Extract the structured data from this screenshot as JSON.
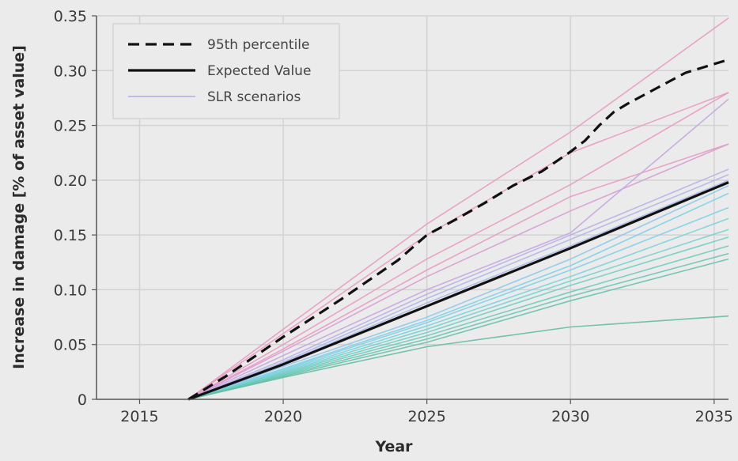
{
  "chart_data": {
    "type": "line",
    "title": "",
    "xlabel": "Year",
    "ylabel": "Increase in damage [% of asset value]",
    "xlim": [
      2013.5,
      2035.5
    ],
    "ylim": [
      0,
      0.35
    ],
    "x_ticks": [
      2015,
      2020,
      2025,
      2030,
      2035
    ],
    "x_tick_labels": [
      "2015",
      "2020",
      "2025",
      "2030",
      "2035"
    ],
    "y_ticks": [
      0,
      0.05,
      0.1,
      0.15,
      0.2,
      0.25,
      0.3,
      0.35
    ],
    "y_tick_labels": [
      "0",
      "0.05",
      "0.10",
      "0.15",
      "0.20",
      "0.25",
      "0.30",
      "0.35"
    ],
    "grid": true,
    "legend_position": "top-left",
    "legend": [
      {
        "label": "95th percentile",
        "style": "dashed",
        "color": "#111111"
      },
      {
        "label": "Expected Value",
        "style": "solid",
        "color": "#111111"
      },
      {
        "label": "SLR scenarios",
        "style": "thin",
        "color": "#b7b4e4"
      }
    ],
    "series": [
      {
        "name": "95th percentile",
        "style": "dashed",
        "color": "#111111",
        "x": [
          2016.7,
          2018,
          2020,
          2022,
          2024,
          2025,
          2026,
          2027,
          2028,
          2029,
          2030,
          2030.5,
          2031,
          2031.5,
          2032,
          2033,
          2034,
          2035.5
        ],
        "y": [
          0,
          0.021,
          0.057,
          0.091,
          0.127,
          0.15,
          0.164,
          0.179,
          0.195,
          0.208,
          0.226,
          0.236,
          0.25,
          0.262,
          0.27,
          0.284,
          0.298,
          0.31
        ]
      },
      {
        "name": "Expected Value",
        "style": "solid",
        "color": "#111111",
        "x": [
          2016.7,
          2020,
          2025,
          2030,
          2035.5
        ],
        "y": [
          0,
          0.032,
          0.085,
          0.138,
          0.198
        ]
      }
    ],
    "scenario_series": [
      {
        "color": "#e89bc2",
        "x": [
          2016.7,
          2020,
          2025,
          2030,
          2035.5
        ],
        "y": [
          0,
          0.064,
          0.16,
          0.244,
          0.348
        ]
      },
      {
        "color": "#e89bc2",
        "x": [
          2016.7,
          2020,
          2025,
          2030,
          2035.5
        ],
        "y": [
          0,
          0.06,
          0.15,
          0.225,
          0.28
        ]
      },
      {
        "color": "#e89bc2",
        "x": [
          2016.7,
          2020,
          2025,
          2030,
          2035.5
        ],
        "y": [
          0,
          0.05,
          0.128,
          0.196,
          0.28
        ]
      },
      {
        "color": "#e89bc2",
        "x": [
          2016.7,
          2020,
          2025,
          2030,
          2035.5
        ],
        "y": [
          0,
          0.046,
          0.118,
          0.185,
          0.233
        ]
      },
      {
        "color": "#d79dd3",
        "x": [
          2016.7,
          2020,
          2025,
          2030,
          2035.5
        ],
        "y": [
          0,
          0.044,
          0.112,
          0.172,
          0.233
        ]
      },
      {
        "color": "#c6a6e1",
        "x": [
          2016.7,
          2020,
          2025,
          2030,
          2035.5
        ],
        "y": [
          0,
          0.04,
          0.1,
          0.152,
          0.274
        ]
      },
      {
        "color": "#b8b1e6",
        "x": [
          2016.7,
          2020,
          2025,
          2030,
          2035.5
        ],
        "y": [
          0,
          0.036,
          0.096,
          0.15,
          0.21
        ]
      },
      {
        "color": "#b2b6e8",
        "x": [
          2016.7,
          2020,
          2025,
          2030,
          2035.5
        ],
        "y": [
          0,
          0.034,
          0.092,
          0.146,
          0.205
        ]
      },
      {
        "color": "#a8bde8",
        "x": [
          2016.7,
          2020,
          2025,
          2030,
          2035.5
        ],
        "y": [
          0,
          0.033,
          0.088,
          0.14,
          0.2
        ]
      },
      {
        "color": "#8ec9ea",
        "x": [
          2016.7,
          2020,
          2025,
          2030,
          2035.5
        ],
        "y": [
          0,
          0.03,
          0.075,
          0.128,
          0.195
        ]
      },
      {
        "color": "#7fd0e8",
        "x": [
          2016.7,
          2020,
          2025,
          2030,
          2035.5
        ],
        "y": [
          0,
          0.028,
          0.072,
          0.122,
          0.188
        ]
      },
      {
        "color": "#7fd0e8",
        "x": [
          2016.7,
          2020,
          2025,
          2030,
          2035.5
        ],
        "y": [
          0,
          0.027,
          0.07,
          0.118,
          0.175
        ]
      },
      {
        "color": "#7ad3dc",
        "x": [
          2016.7,
          2020,
          2025,
          2030,
          2035.5
        ],
        "y": [
          0,
          0.026,
          0.067,
          0.112,
          0.165
        ]
      },
      {
        "color": "#74d2d2",
        "x": [
          2016.7,
          2020,
          2025,
          2030,
          2035.5
        ],
        "y": [
          0,
          0.025,
          0.064,
          0.108,
          0.155
        ]
      },
      {
        "color": "#6fcfc5",
        "x": [
          2016.7,
          2020,
          2025,
          2030,
          2035.5
        ],
        "y": [
          0,
          0.024,
          0.061,
          0.104,
          0.148
        ]
      },
      {
        "color": "#6ccbbd",
        "x": [
          2016.7,
          2020,
          2025,
          2030,
          2035.5
        ],
        "y": [
          0,
          0.023,
          0.058,
          0.098,
          0.14
        ]
      },
      {
        "color": "#6ac6b4",
        "x": [
          2016.7,
          2020,
          2025,
          2030,
          2035.5
        ],
        "y": [
          0,
          0.022,
          0.055,
          0.094,
          0.133
        ]
      },
      {
        "color": "#68c1ad",
        "x": [
          2016.7,
          2020,
          2025,
          2030,
          2035.5
        ],
        "y": [
          0,
          0.021,
          0.052,
          0.09,
          0.128
        ]
      },
      {
        "color": "#66bba5",
        "x": [
          2016.7,
          2020,
          2025,
          2030,
          2035.5
        ],
        "y": [
          0,
          0.02,
          0.048,
          0.066,
          0.076
        ]
      }
    ]
  }
}
